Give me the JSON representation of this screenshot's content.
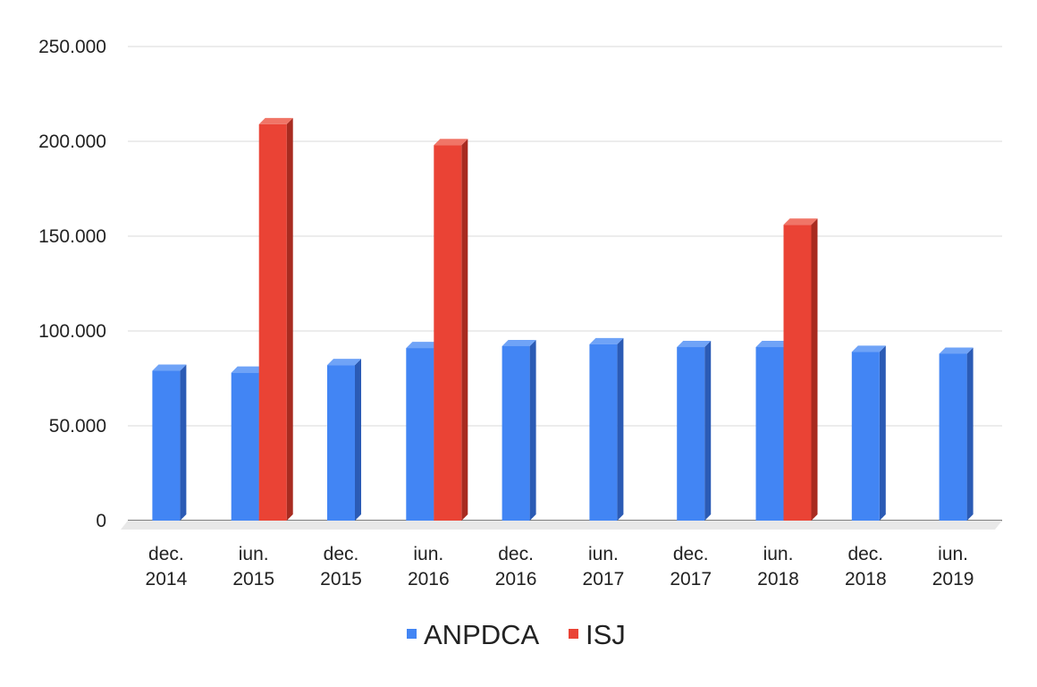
{
  "chart_data": {
    "type": "bar",
    "style": "3d-column",
    "title": "",
    "xlabel": "",
    "ylabel": "",
    "ylim": [
      0,
      250000
    ],
    "yticks": [
      0,
      50000,
      100000,
      150000,
      200000,
      250000
    ],
    "ytick_labels": [
      "0",
      "50.000",
      "100.000",
      "150.000",
      "200.000",
      "250.000"
    ],
    "grid": true,
    "legend_position": "bottom",
    "categories": [
      [
        "dec.",
        "2014"
      ],
      [
        "iun.",
        "2015"
      ],
      [
        "dec.",
        "2015"
      ],
      [
        "iun.",
        "2016"
      ],
      [
        "dec.",
        "2016"
      ],
      [
        "iun.",
        "2017"
      ],
      [
        "dec.",
        "2017"
      ],
      [
        "iun.",
        "2018"
      ],
      [
        "dec.",
        "2018"
      ],
      [
        "iun.",
        "2019"
      ]
    ],
    "series": [
      {
        "name": "ANPDCA",
        "color": "#4285f4",
        "side_color": "#2b5bb5",
        "top_color": "#6fa3f7",
        "values": [
          79000,
          78000,
          82000,
          91000,
          92000,
          93000,
          91500,
          91500,
          89000,
          88000
        ]
      },
      {
        "name": "ISJ",
        "color": "#ea4335",
        "side_color": "#a82b20",
        "top_color": "#f07567",
        "values": [
          null,
          209000,
          null,
          198000,
          null,
          null,
          null,
          156000,
          null,
          null
        ]
      }
    ]
  }
}
